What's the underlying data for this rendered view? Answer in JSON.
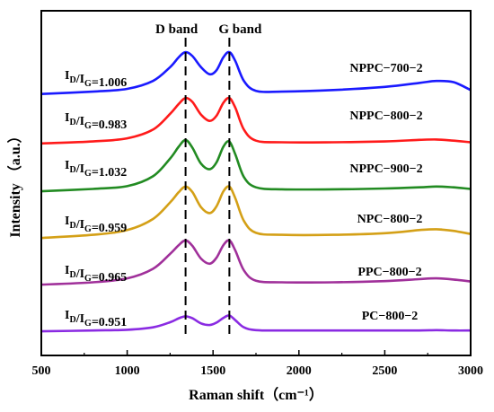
{
  "chart_data": {
    "type": "line",
    "xlabel": "Raman shift（cm⁻¹）",
    "ylabel": "Intensity （a.u.）",
    "xlim": [
      500,
      3000
    ],
    "xticks": [
      "500",
      "1000",
      "1500",
      "2000",
      "2500",
      "3000"
    ],
    "yticks": "none",
    "grid": false,
    "legend": "none",
    "band_markers": [
      {
        "label": "D band",
        "x": 1340
      },
      {
        "label": "G band",
        "x": 1595
      }
    ],
    "ratio_prefix": {
      "main1": "I",
      "sub1": "D",
      "slash": "/",
      "main2": "I",
      "sub2": "G",
      "eq": "="
    },
    "series": [
      {
        "name": "NPPC−700−2",
        "ratio": "1.006",
        "color": "#1a1aff",
        "offset": 5,
        "x": [
          500,
          800,
          1000,
          1150,
          1250,
          1300,
          1340,
          1380,
          1430,
          1480,
          1520,
          1560,
          1595,
          1630,
          1680,
          1750,
          1900,
          2200,
          2500,
          2700,
          2800,
          2900,
          3000
        ],
        "y": [
          0.12,
          0.18,
          0.25,
          0.45,
          0.8,
          1.05,
          1.18,
          1.08,
          0.8,
          0.62,
          0.72,
          1.05,
          1.18,
          0.95,
          0.45,
          0.2,
          0.18,
          0.22,
          0.3,
          0.4,
          0.45,
          0.42,
          0.22
        ]
      },
      {
        "name": "NPPC−800−2",
        "ratio": "0.983",
        "color": "#ff1a1a",
        "offset": 4,
        "x": [
          500,
          800,
          1000,
          1150,
          1250,
          1300,
          1340,
          1380,
          1430,
          1480,
          1520,
          1560,
          1595,
          1630,
          1680,
          1750,
          1900,
          2200,
          2500,
          2700,
          2800,
          2900,
          3000
        ],
        "y": [
          0.05,
          0.1,
          0.18,
          0.4,
          0.8,
          1.05,
          1.2,
          1.1,
          0.78,
          0.62,
          0.75,
          1.08,
          1.2,
          0.95,
          0.4,
          0.12,
          0.08,
          0.08,
          0.1,
          0.14,
          0.15,
          0.12,
          0.08
        ]
      },
      {
        "name": "NPPC−900−2",
        "ratio": "1.032",
        "color": "#228b22",
        "offset": 3,
        "x": [
          500,
          800,
          1000,
          1150,
          1250,
          1300,
          1340,
          1380,
          1430,
          1480,
          1520,
          1560,
          1595,
          1630,
          1680,
          1750,
          1900,
          2200,
          2500,
          2700,
          2800,
          2900,
          3000
        ],
        "y": [
          0.02,
          0.08,
          0.15,
          0.4,
          0.85,
          1.15,
          1.32,
          1.12,
          0.72,
          0.58,
          0.75,
          1.15,
          1.28,
          0.95,
          0.38,
          0.12,
          0.07,
          0.07,
          0.09,
          0.12,
          0.14,
          0.12,
          0.08
        ]
      },
      {
        "name": "NPC−800−2",
        "ratio": "0.959",
        "color": "#d4a017",
        "offset": 2,
        "x": [
          500,
          800,
          1000,
          1150,
          1250,
          1300,
          1340,
          1380,
          1430,
          1480,
          1520,
          1560,
          1595,
          1630,
          1680,
          1750,
          1900,
          2200,
          2500,
          2700,
          2800,
          2900,
          3000
        ],
        "y": [
          0.02,
          0.1,
          0.22,
          0.5,
          0.92,
          1.18,
          1.32,
          1.18,
          0.8,
          0.65,
          0.82,
          1.2,
          1.32,
          1.02,
          0.45,
          0.15,
          0.1,
          0.1,
          0.14,
          0.22,
          0.24,
          0.2,
          0.12
        ]
      },
      {
        "name": "PPC−800−2",
        "ratio": "0.965",
        "color": "#a0309a",
        "offset": 1,
        "x": [
          500,
          800,
          1000,
          1150,
          1250,
          1300,
          1340,
          1380,
          1430,
          1480,
          1520,
          1560,
          1595,
          1630,
          1680,
          1750,
          1900,
          2200,
          2500,
          2700,
          2800,
          2900,
          3000
        ],
        "y": [
          0.02,
          0.08,
          0.18,
          0.42,
          0.8,
          1.02,
          1.14,
          1.0,
          0.68,
          0.55,
          0.7,
          1.02,
          1.14,
          0.88,
          0.38,
          0.12,
          0.08,
          0.08,
          0.11,
          0.16,
          0.18,
          0.15,
          0.1
        ]
      },
      {
        "name": "PC−800−2",
        "ratio": "0.951",
        "color": "#8a2be2",
        "offset": 0,
        "x": [
          500,
          800,
          1000,
          1150,
          1250,
          1300,
          1340,
          1380,
          1430,
          1480,
          1520,
          1560,
          1595,
          1630,
          1680,
          1750,
          1900,
          2200,
          2500,
          2700,
          2800,
          2900,
          3000
        ],
        "y": [
          0.02,
          0.04,
          0.06,
          0.12,
          0.25,
          0.35,
          0.4,
          0.35,
          0.22,
          0.18,
          0.24,
          0.36,
          0.42,
          0.3,
          0.12,
          0.05,
          0.04,
          0.04,
          0.04,
          0.04,
          0.05,
          0.04,
          0.04
        ]
      }
    ]
  }
}
